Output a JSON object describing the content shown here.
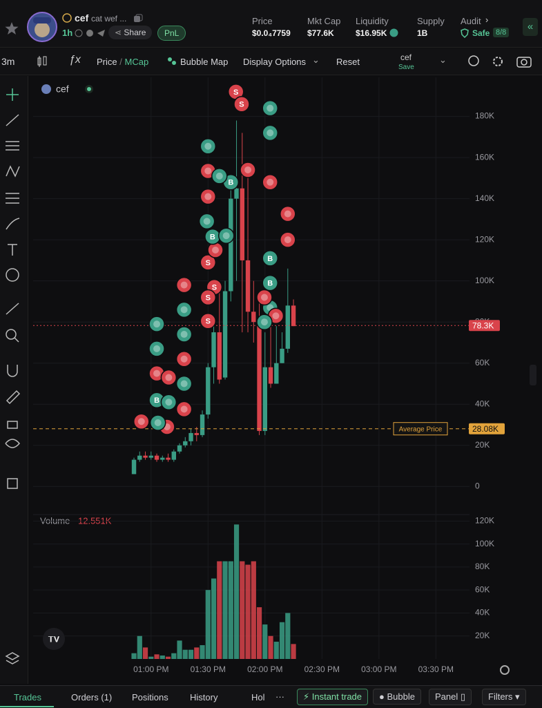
{
  "header": {
    "symbol": "cef",
    "name": "cat wef ...",
    "age": "1h",
    "share": "Share",
    "pnl": "PnL",
    "stats": [
      {
        "label": "Price",
        "value": "$0.0₄7759"
      },
      {
        "label": "Mkt Cap",
        "value": "$77.6K"
      },
      {
        "label": "Liquidity",
        "value": "$16.95K"
      },
      {
        "label": "Supply",
        "value": "1B"
      }
    ],
    "audit": {
      "label": "Audit",
      "value": "Safe",
      "score": "8/8"
    }
  },
  "toolbar": {
    "interval": "3m",
    "price": "Price",
    "separator": "/",
    "mcap": "MCap",
    "bubble_map": "Bubble Map",
    "display_options": "Display Options",
    "reset": "Reset",
    "layout": "cef",
    "save": "Save"
  },
  "chart_data": [
    {
      "type": "candlestick",
      "legend": "cef",
      "categories": [
        null,
        null,
        null,
        null,
        null,
        null,
        null,
        null,
        null,
        null,
        null,
        null,
        null,
        null,
        null,
        null,
        null,
        null,
        null,
        null,
        null,
        null,
        null,
        null,
        null,
        null,
        null,
        null,
        null
      ],
      "open": [
        6000,
        13000,
        15000,
        14000,
        15000,
        13000,
        14000,
        13000,
        17000,
        20000,
        22000,
        26000,
        25000,
        35000,
        58000,
        75000,
        53000,
        95000,
        140000,
        145000,
        110000,
        85000,
        80000,
        27000,
        58000,
        50000,
        60000,
        67000,
        88000
      ],
      "high": [
        14000,
        17000,
        17000,
        17000,
        16000,
        15000,
        16000,
        18000,
        21000,
        24000,
        28000,
        29000,
        37000,
        60000,
        80000,
        97000,
        100000,
        150000,
        178000,
        172000,
        155000,
        100000,
        95000,
        75000,
        80000,
        78000,
        75000,
        106000,
        91000
      ],
      "low": [
        6000,
        12000,
        13000,
        13000,
        12000,
        12000,
        12000,
        12000,
        16000,
        19000,
        20000,
        22000,
        24000,
        33000,
        50000,
        50000,
        52000,
        90000,
        100000,
        75000,
        75000,
        70000,
        25000,
        25000,
        48000,
        50000,
        60000,
        65000,
        78000
      ],
      "close": [
        13000,
        15000,
        14000,
        15000,
        13000,
        14000,
        13000,
        17000,
        20000,
        22000,
        26000,
        25000,
        35000,
        58000,
        75000,
        52000,
        95000,
        140000,
        145000,
        110000,
        85000,
        80000,
        27000,
        58000,
        50000,
        60000,
        67000,
        88000,
        78000
      ],
      "up_color": "#3a9d85",
      "down_color": "#d9434b",
      "xlim": [
        -17.7,
        58.9
      ],
      "xticks": [
        {
          "value": 3,
          "label": "01:00 PM"
        },
        {
          "value": 13,
          "label": "01:30 PM"
        },
        {
          "value": 23,
          "label": "02:00 PM"
        },
        {
          "value": 33,
          "label": "02:30 PM"
        },
        {
          "value": 43,
          "label": "03:00 PM"
        },
        {
          "value": 53,
          "label": "03:30 PM"
        }
      ],
      "ylim": [
        -12000,
        198000
      ],
      "yticks": [
        0,
        {
          "value": 20000,
          "label": "20K"
        },
        {
          "value": 40000,
          "label": "40K"
        },
        {
          "value": 60000,
          "label": "60K"
        },
        {
          "value": 80000,
          "label": "80K"
        },
        {
          "value": 100000,
          "label": "100K"
        },
        {
          "value": 120000,
          "label": "120K"
        },
        {
          "value": 140000,
          "label": "140K"
        },
        {
          "value": 160000,
          "label": "160K"
        },
        {
          "value": 180000,
          "label": "180K"
        }
      ],
      "grid": true,
      "reference_lines": [
        {
          "name": "Average Price",
          "value": 28080,
          "value_label": "28.08K",
          "color": "#e2a33b"
        },
        {
          "value": 78300,
          "value_label": "78.3K",
          "color": "#d9434b"
        }
      ],
      "markers": [
        {
          "x": 17.9,
          "y": 192000,
          "color": "#d9434b",
          "label": "S"
        },
        {
          "x": 18.9,
          "y": 186000,
          "color": "#d9434b",
          "label": "S"
        },
        {
          "x": 13,
          "y": 109000,
          "color": "#d9434b",
          "label": "S"
        },
        {
          "x": 14.1,
          "y": 97000,
          "color": "#d9434b",
          "label": "S"
        },
        {
          "x": 13,
          "y": 92000,
          "color": "#d9434b",
          "label": "S"
        },
        {
          "x": 13,
          "y": 80500,
          "color": "#d9434b",
          "label": "S"
        },
        {
          "x": 14.3,
          "y": 115000,
          "color": "#d9434b"
        },
        {
          "x": 17,
          "y": 148000,
          "color": "#3a9d85",
          "label": "B"
        },
        {
          "x": 13.8,
          "y": 121500,
          "color": "#3a9d85",
          "label": "B"
        },
        {
          "x": 4,
          "y": 42000,
          "color": "#3a9d85",
          "label": "B"
        },
        {
          "x": 23.9,
          "y": 111000,
          "color": "#3a9d85",
          "label": "B"
        },
        {
          "x": 23.9,
          "y": 99000,
          "color": "#3a9d85",
          "label": "B"
        },
        {
          "x": 23.9,
          "y": 87000,
          "color": "#3a9d85"
        },
        {
          "x": 13,
          "y": 165500,
          "color": "#3a9d85"
        },
        {
          "x": 23.9,
          "y": 184000,
          "color": "#3a9d85"
        },
        {
          "x": 23.9,
          "y": 172000,
          "color": "#3a9d85"
        },
        {
          "x": 8.8,
          "y": 98000,
          "color": "#d9434b"
        },
        {
          "x": 8.8,
          "y": 86000,
          "color": "#3a9d85"
        },
        {
          "x": 4,
          "y": 79000,
          "color": "#3a9d85"
        },
        {
          "x": 4,
          "y": 67000,
          "color": "#3a9d85"
        },
        {
          "x": 8.8,
          "y": 74000,
          "color": "#3a9d85"
        },
        {
          "x": 8.8,
          "y": 62000,
          "color": "#d9434b"
        },
        {
          "x": 4,
          "y": 55000,
          "color": "#d9434b"
        },
        {
          "x": 6.1,
          "y": 53000,
          "color": "#d9434b"
        },
        {
          "x": 8.8,
          "y": 50000,
          "color": "#3a9d85"
        },
        {
          "x": 6.1,
          "y": 41000,
          "color": "#3a9d85"
        },
        {
          "x": 8.8,
          "y": 37600,
          "color": "#d9434b"
        },
        {
          "x": 27,
          "y": 132600,
          "color": "#d9434b"
        },
        {
          "x": 27,
          "y": 120000,
          "color": "#d9434b"
        },
        {
          "x": 24.9,
          "y": 83000,
          "color": "#d9434b"
        },
        {
          "x": 22.9,
          "y": 80000,
          "color": "#3a9d85"
        },
        {
          "x": 20,
          "y": 154000,
          "color": "#d9434b"
        },
        {
          "x": 23.9,
          "y": 148000,
          "color": "#d9434b"
        },
        {
          "x": 22.9,
          "y": 92000,
          "color": "#d9434b"
        },
        {
          "x": 1.3,
          "y": 31600,
          "color": "#d9434b"
        },
        {
          "x": 5.8,
          "y": 29000,
          "color": "#d9434b"
        },
        {
          "x": 4.2,
          "y": 31000,
          "color": "#3a9d85"
        },
        {
          "x": 16.2,
          "y": 122000,
          "color": "#3a9d85"
        },
        {
          "x": 13,
          "y": 153500,
          "color": "#d9434b"
        },
        {
          "x": 15,
          "y": 151000,
          "color": "#3a9d85"
        },
        {
          "x": 13,
          "y": 141000,
          "color": "#d9434b"
        },
        {
          "x": 12.8,
          "y": 129000,
          "color": "#3a9d85"
        }
      ]
    },
    {
      "type": "bar",
      "title": "Volume",
      "current": 12551,
      "current_label": "12.551K",
      "values": [
        5000,
        20000,
        10000,
        2000,
        4000,
        3000,
        2000,
        5000,
        16000,
        8000,
        8000,
        10000,
        12000,
        60000,
        70000,
        85000,
        85000,
        85000,
        117000,
        85000,
        82000,
        85000,
        45000,
        30000,
        20000,
        15000,
        32000,
        40000,
        13000
      ],
      "ylim": [
        0,
        125000
      ],
      "yticks": [
        {
          "value": 20000,
          "label": "20K"
        },
        {
          "value": 40000,
          "label": "40K"
        },
        {
          "value": 60000,
          "label": "60K"
        },
        {
          "value": 80000,
          "label": "80K"
        },
        {
          "value": 100000,
          "label": "100K"
        },
        {
          "value": 120000,
          "label": "120K"
        }
      ]
    }
  ],
  "footer": {
    "tabs": [
      "Trades",
      "Orders (1)",
      "Positions",
      "History",
      "Hol"
    ],
    "more": "···",
    "instant_trade": "Instant trade",
    "bubble": "Bubble",
    "panel": "Panel",
    "filters": "Filters"
  }
}
